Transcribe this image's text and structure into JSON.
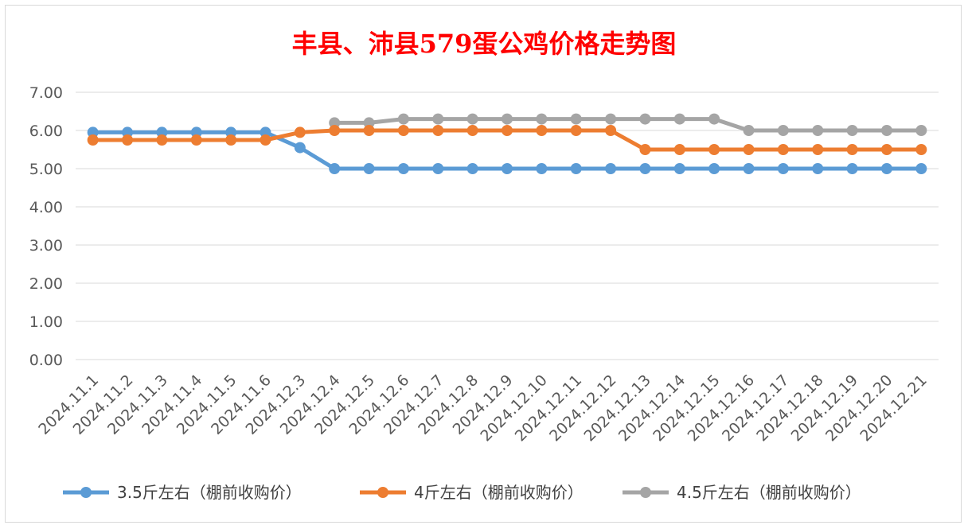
{
  "chart_data": {
    "type": "line",
    "title": "丰县、沛县579蛋公鸡价格走势图",
    "xlabel": "",
    "ylabel": "",
    "ylim": [
      0,
      7
    ],
    "yticks": [
      "0.00",
      "1.00",
      "2.00",
      "3.00",
      "4.00",
      "5.00",
      "6.00",
      "7.00"
    ],
    "grid": true,
    "legend_position": "bottom",
    "categories": [
      "2024.11.1",
      "2024.11.2",
      "2024.11.3",
      "2024.11.4",
      "2024.11.5",
      "2024.11.6",
      "2024.12.3",
      "2024.12.4",
      "2024.12.5",
      "2024.12.6",
      "2024.12.7",
      "2024.12.8",
      "2024.12.9",
      "2024.12.10",
      "2024.12.11",
      "2024.12.12",
      "2024.12.13",
      "2024.12.14",
      "2024.12.15",
      "2024.12.16",
      "2024.12.17",
      "2024.12.18",
      "2024.12.19",
      "2024.12.20",
      "2024.12.21"
    ],
    "series": [
      {
        "name": "3.5斤左右（棚前收购价）",
        "color": "#5b9bd5",
        "values": [
          5.95,
          5.95,
          5.95,
          5.95,
          5.95,
          5.95,
          5.55,
          5.0,
          5.0,
          5.0,
          5.0,
          5.0,
          5.0,
          5.0,
          5.0,
          5.0,
          5.0,
          5.0,
          5.0,
          5.0,
          5.0,
          5.0,
          5.0,
          5.0,
          5.0
        ]
      },
      {
        "name": "4斤左右（棚前收购价）",
        "color": "#ed7d31",
        "values": [
          5.75,
          5.75,
          5.75,
          5.75,
          5.75,
          5.75,
          5.95,
          6.0,
          6.0,
          6.0,
          6.0,
          6.0,
          6.0,
          6.0,
          6.0,
          6.0,
          5.5,
          5.5,
          5.5,
          5.5,
          5.5,
          5.5,
          5.5,
          5.5,
          5.5
        ]
      },
      {
        "name": "4.5斤左右（棚前收购价）",
        "color": "#a5a5a5",
        "values": [
          null,
          null,
          null,
          null,
          null,
          null,
          null,
          6.2,
          6.2,
          6.3,
          6.3,
          6.3,
          6.3,
          6.3,
          6.3,
          6.3,
          6.3,
          6.3,
          6.3,
          6.0,
          6.0,
          6.0,
          6.0,
          6.0,
          6.0
        ]
      }
    ],
    "title_color": "#ff0000"
  }
}
